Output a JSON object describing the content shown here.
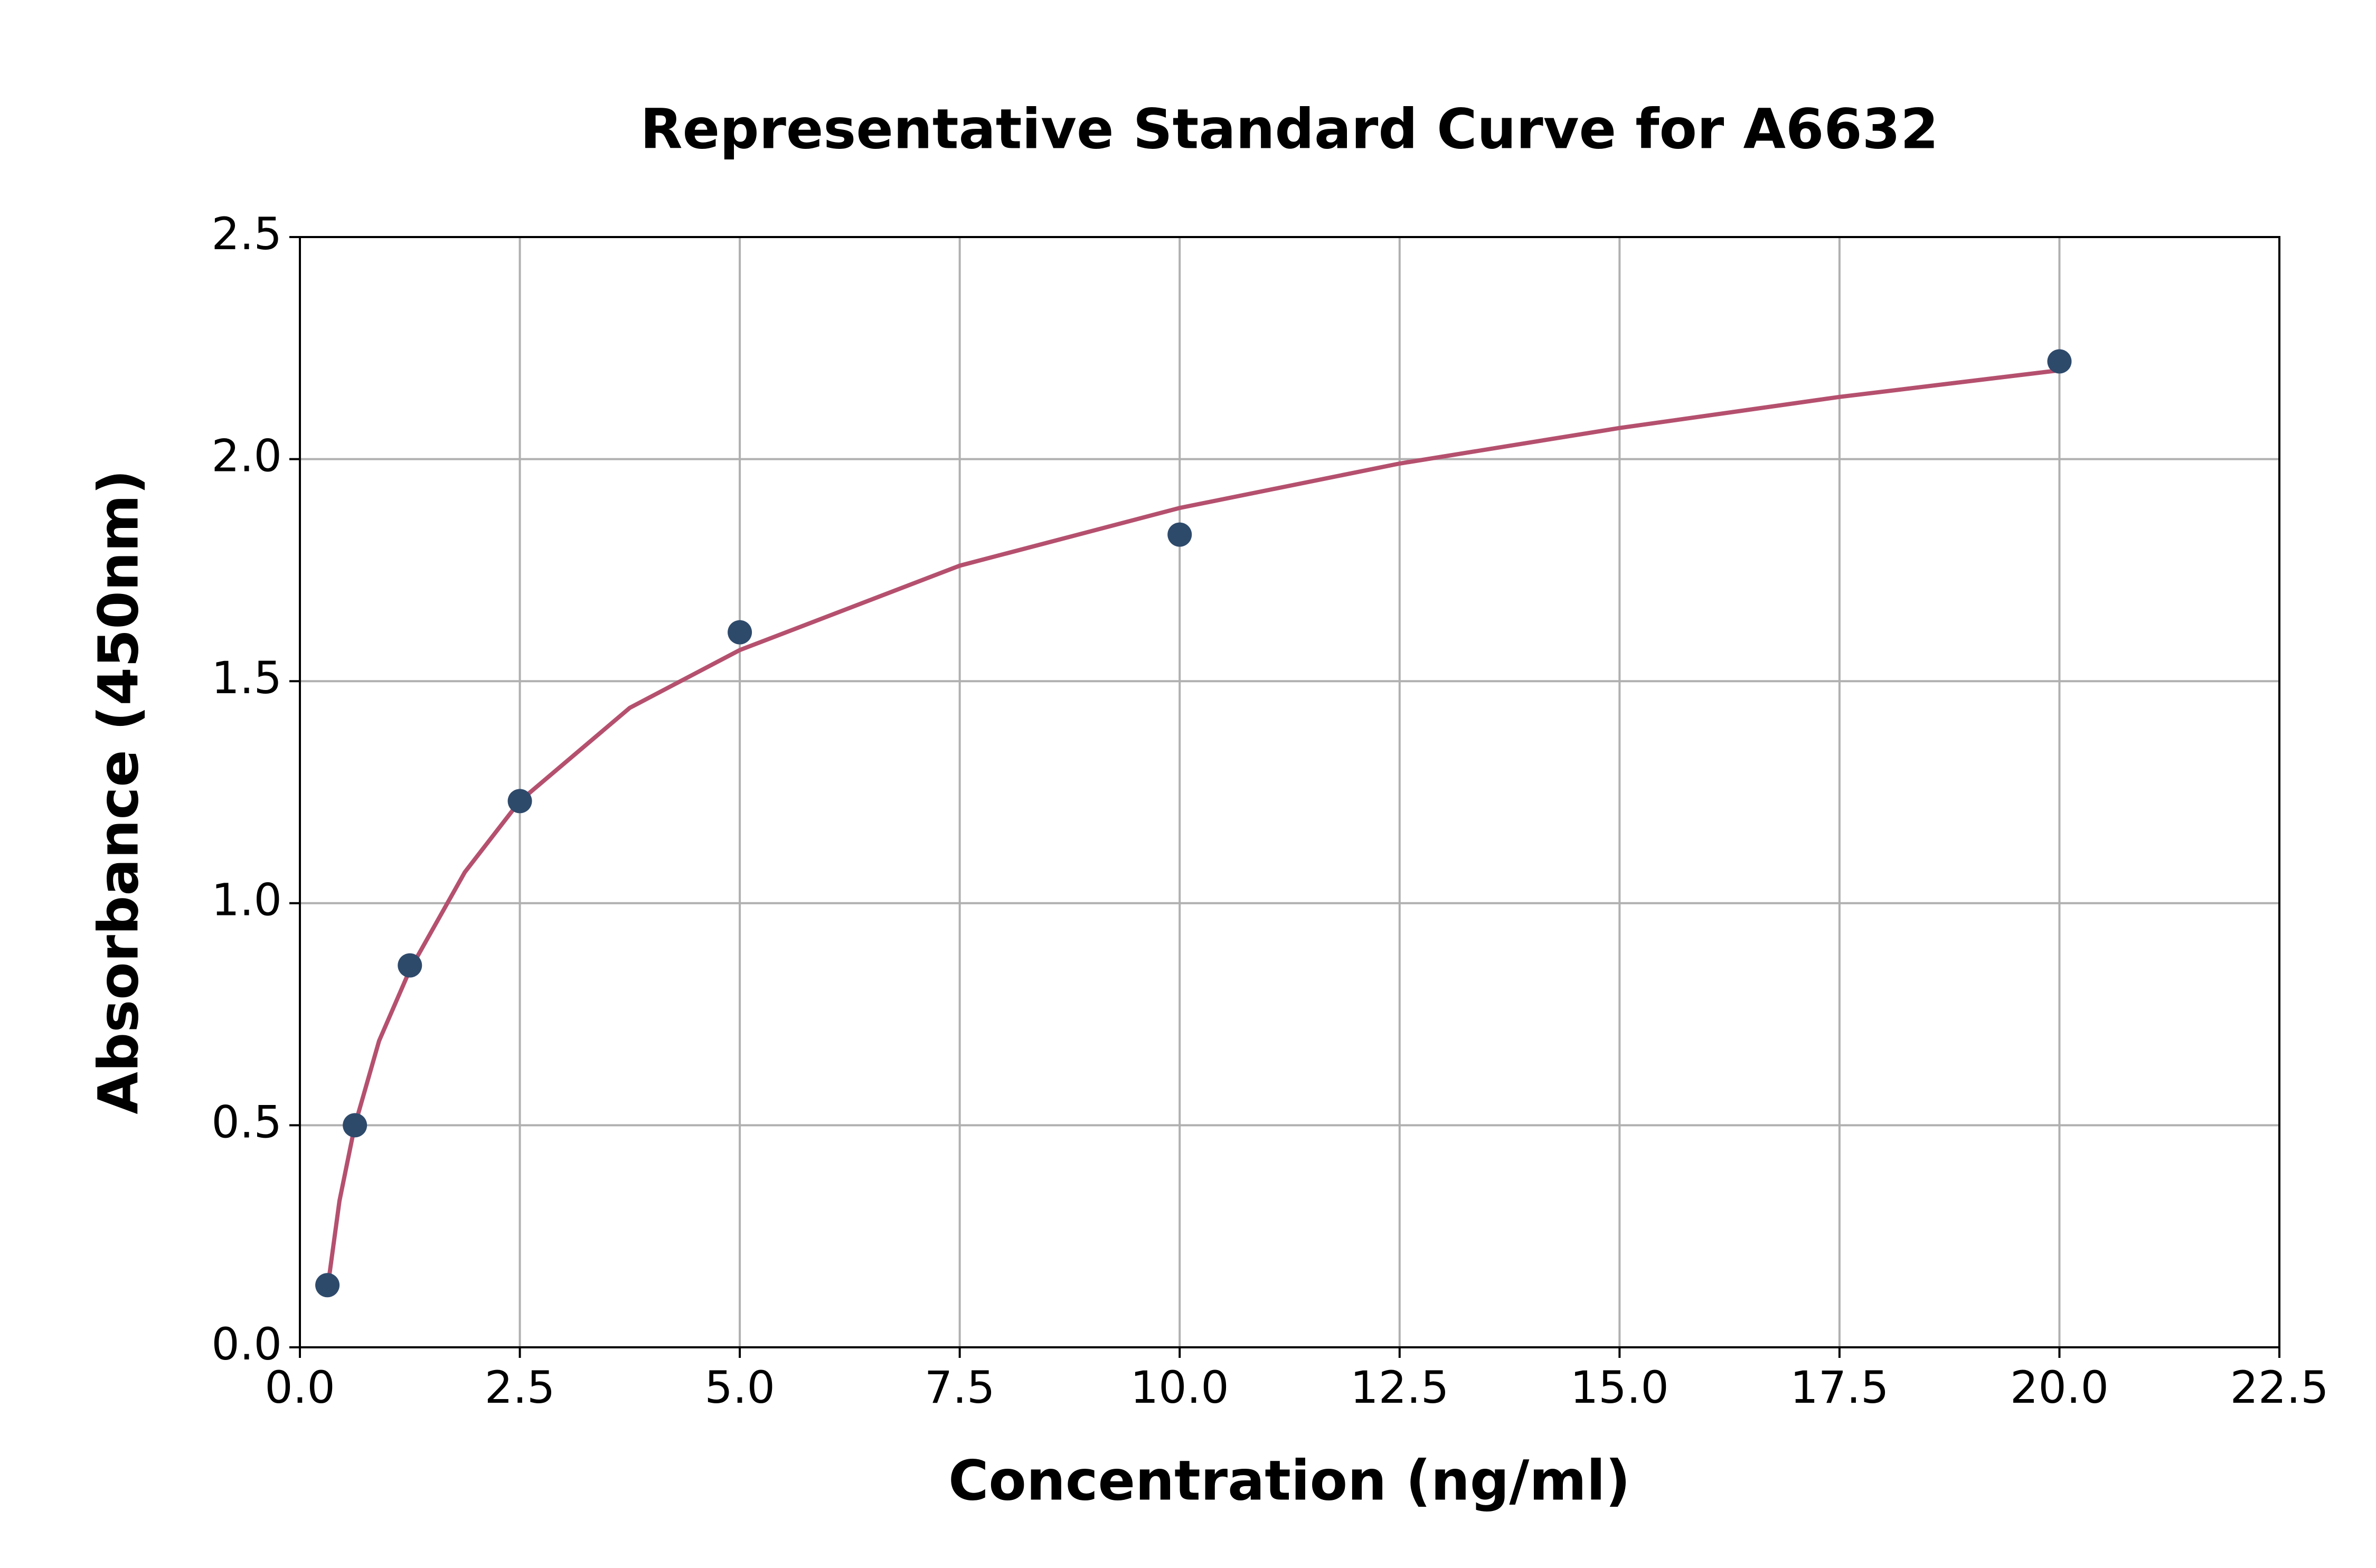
{
  "chart_data": {
    "type": "scatter",
    "title": "Representative Standard Curve for A6632",
    "x_label": "Concentration (ng/ml)",
    "y_label": "Absorbance (450nm)",
    "series": [
      {
        "type": "scatter",
        "color": "#2e4a6b",
        "x": [
          0.3125,
          0.625,
          1.25,
          2.5,
          5,
          10,
          20
        ],
        "values": [
          0.14,
          0.5,
          0.86,
          1.23,
          1.61,
          1.83,
          2.22
        ]
      },
      {
        "type": "line",
        "color": "#b5506f",
        "x": [
          0.3125,
          0.45,
          0.625,
          0.9,
          1.25,
          1.875,
          2.5,
          3.75,
          5,
          7.5,
          10,
          12.5,
          15,
          17.5,
          20
        ],
        "values": [
          0.13,
          0.33,
          0.5,
          0.69,
          0.85,
          1.07,
          1.23,
          1.44,
          1.57,
          1.76,
          1.89,
          1.99,
          2.07,
          2.14,
          2.2
        ]
      }
    ],
    "xlim": [
      0,
      22.5
    ],
    "ylim": [
      0,
      2.5
    ],
    "xticks": [
      {
        "value": 0,
        "label": "0.0"
      },
      2.5,
      {
        "value": 5,
        "label": "5.0"
      },
      7.5,
      {
        "value": 10,
        "label": "10.0"
      },
      12.5,
      {
        "value": 15,
        "label": "15.0"
      },
      17.5,
      {
        "value": 20,
        "label": "20.0"
      },
      22.5
    ],
    "yticks": [
      {
        "value": 0,
        "label": "0.0"
      },
      0.5,
      {
        "value": 1,
        "label": "1.0"
      },
      1.5,
      {
        "value": 2,
        "label": "2.0"
      },
      2.5
    ],
    "grid": true
  }
}
